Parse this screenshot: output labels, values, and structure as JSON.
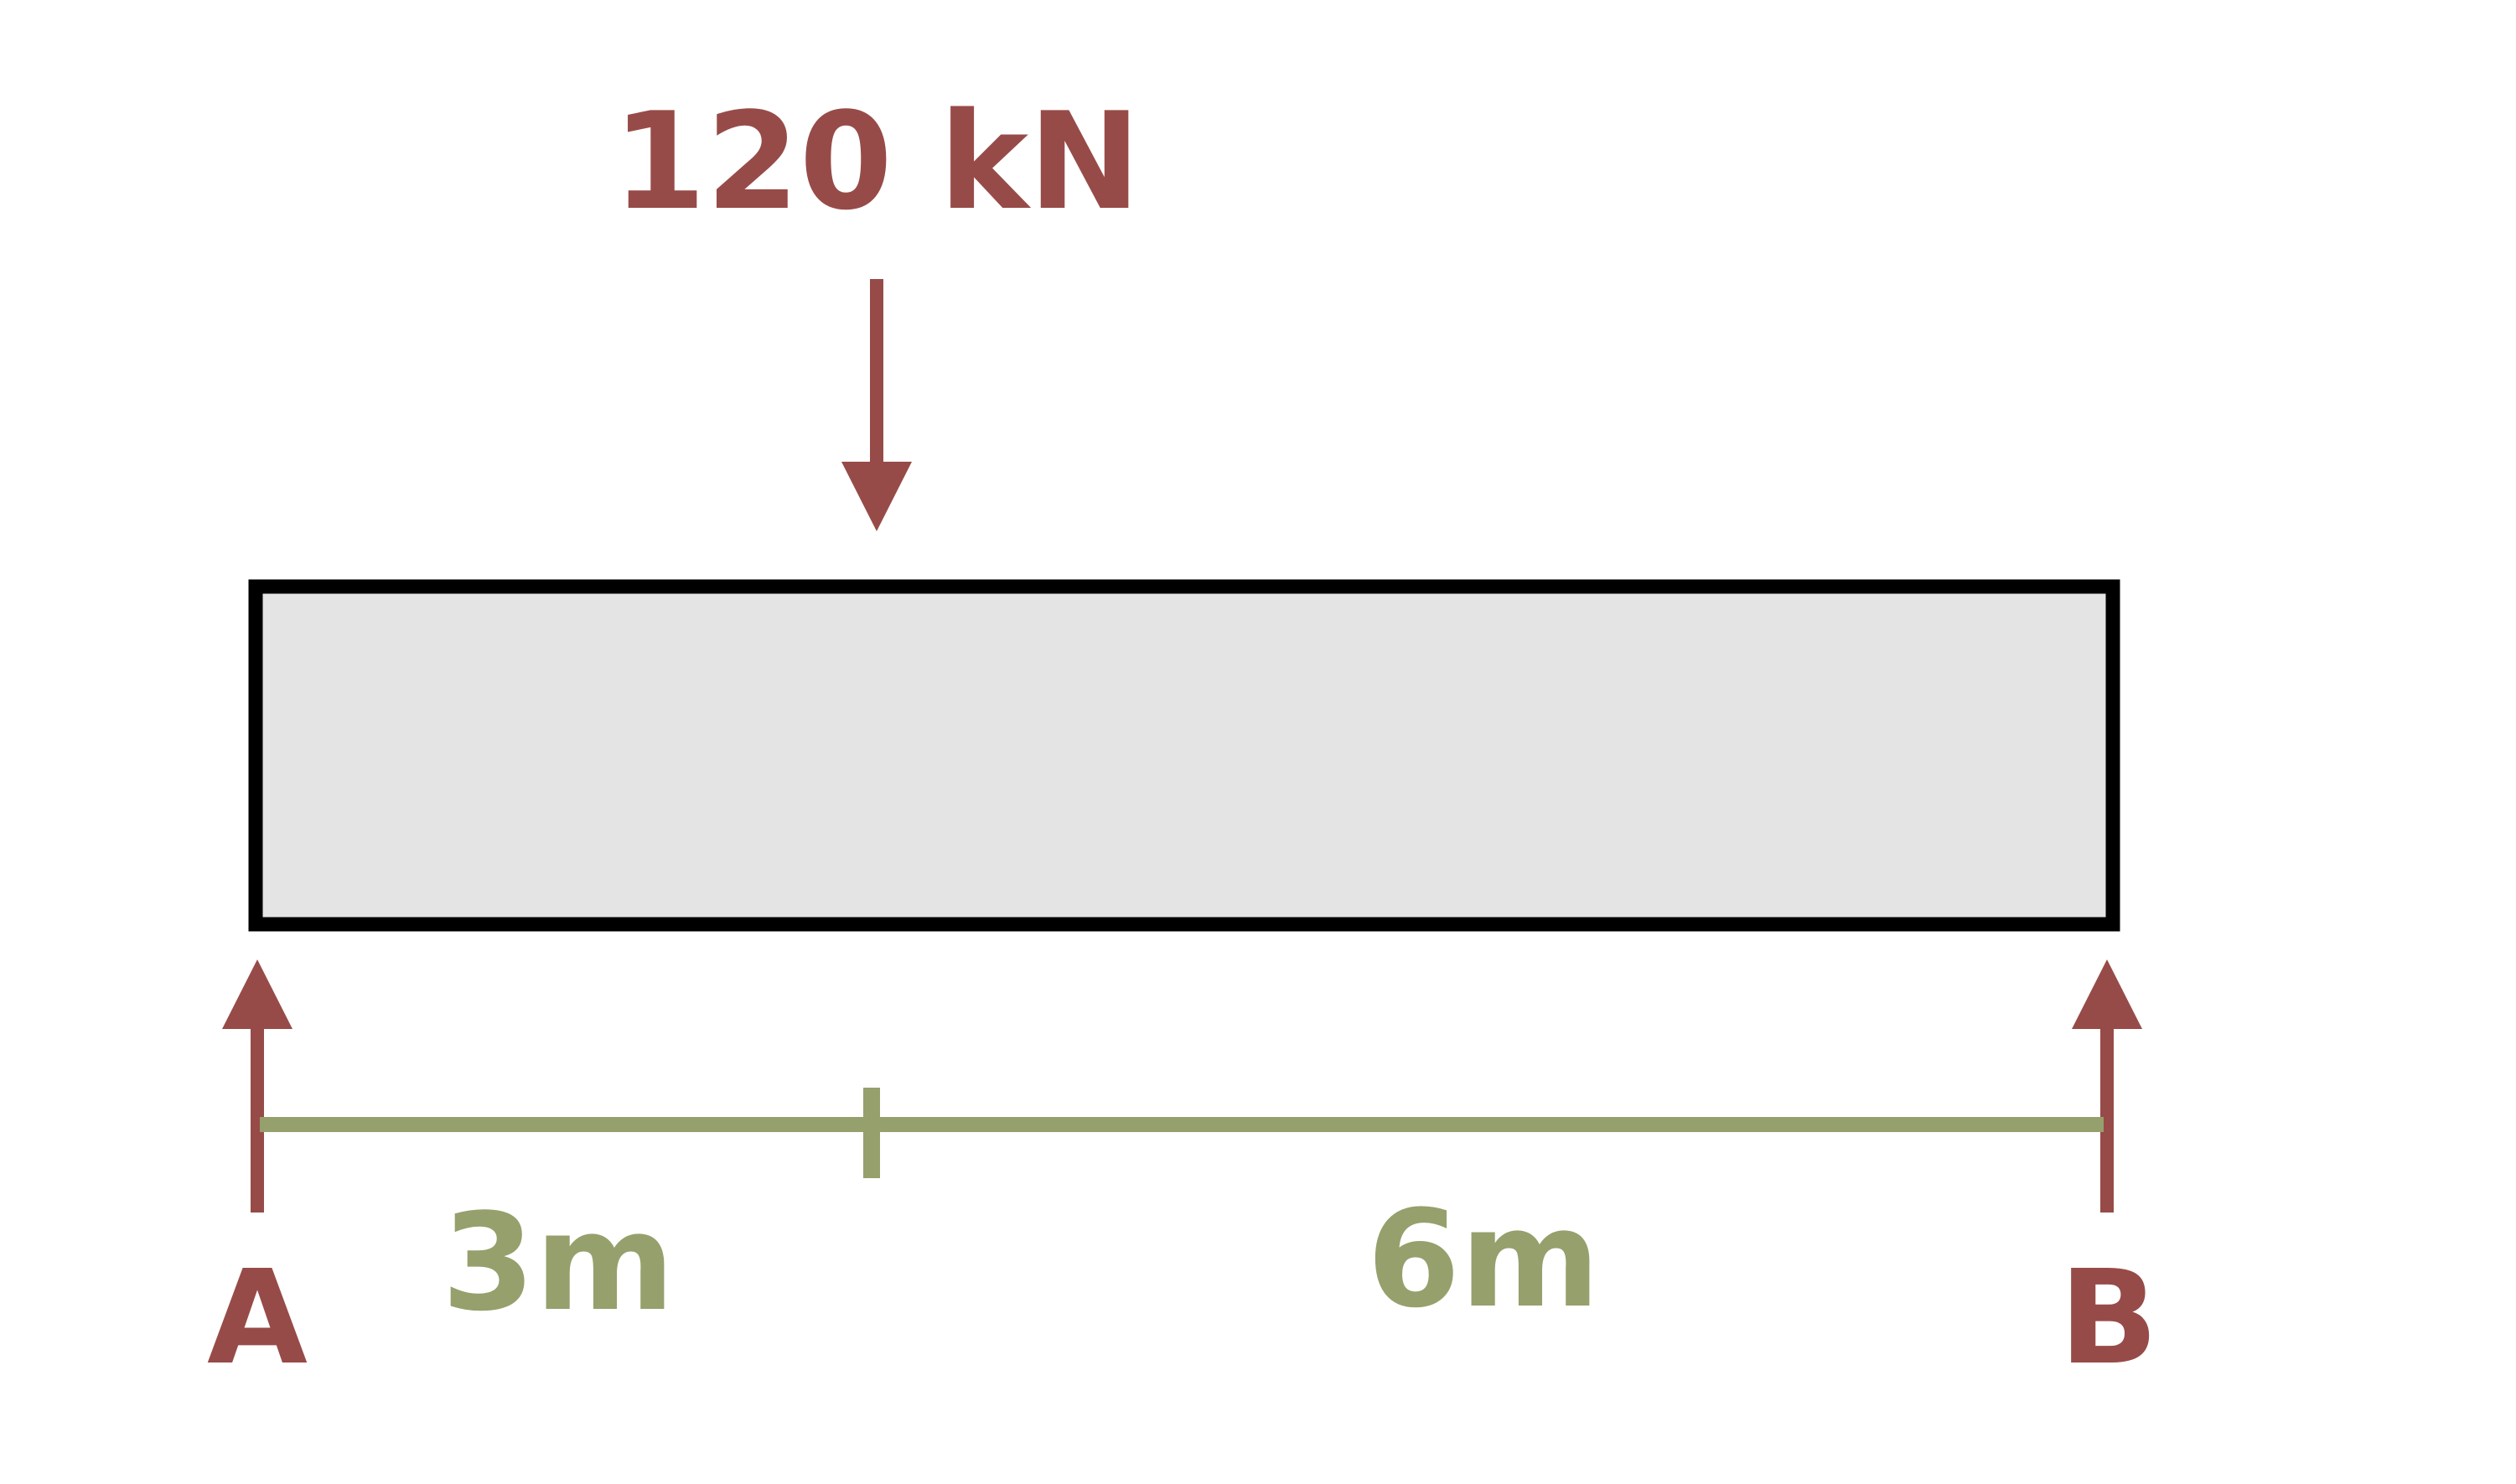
{
  "load": {
    "label": "120 kN"
  },
  "supports": {
    "left_label": "A",
    "right_label": "B"
  },
  "dimensions": {
    "segment1": "3m",
    "segment2": "6m"
  },
  "colors": {
    "force": "#974B48",
    "dimension": "#95A06C",
    "beam_fill": "#E4E4E4",
    "beam_stroke": "#000000"
  }
}
